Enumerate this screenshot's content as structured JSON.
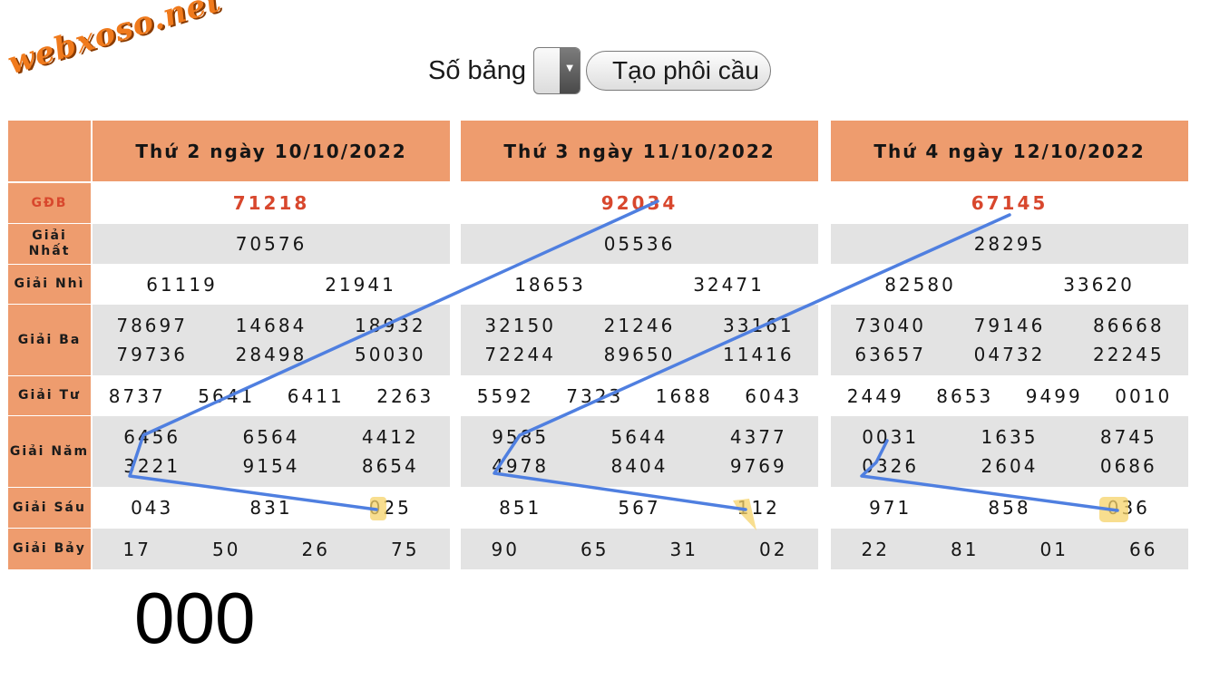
{
  "logo": {
    "text": "webxoso.net"
  },
  "controls": {
    "table_count_label": "Số bảng",
    "table_count_value": "",
    "create_button_label": "Tạo phôi cầu"
  },
  "prize_labels": [
    "GĐB",
    "Giải Nhất",
    "Giải Nhì",
    "Giải Ba",
    "Giải Tư",
    "Giải Năm",
    "Giải Sáu",
    "Giải Bảy"
  ],
  "days": [
    {
      "header": "Thứ 2 ngày 10/10/2022",
      "gdb": "71218",
      "nhat": "70576",
      "nhi": [
        "61119",
        "21941"
      ],
      "ba": [
        "78697",
        "14684",
        "18932",
        "79736",
        "28498",
        "50030"
      ],
      "tu": [
        "8737",
        "5641",
        "6411",
        "2263"
      ],
      "nam": [
        "6456",
        "6564",
        "4412",
        "3221",
        "9154",
        "8654"
      ],
      "sau": [
        "043",
        "831",
        "025"
      ],
      "bay": [
        "17",
        "50",
        "26",
        "75"
      ]
    },
    {
      "header": "Thứ 3 ngày 11/10/2022",
      "gdb": "92034",
      "nhat": "05536",
      "nhi": [
        "18653",
        "32471"
      ],
      "ba": [
        "32150",
        "21246",
        "33161",
        "72244",
        "89650",
        "11416"
      ],
      "tu": [
        "5592",
        "7323",
        "1688",
        "6043"
      ],
      "nam": [
        "9585",
        "5644",
        "4377",
        "4978",
        "8404",
        "9769"
      ],
      "sau": [
        "851",
        "567",
        "112"
      ],
      "bay": [
        "90",
        "65",
        "31",
        "02"
      ]
    },
    {
      "header": "Thứ 4 ngày 12/10/2022",
      "gdb": "67145",
      "nhat": "28295",
      "nhi": [
        "82580",
        "33620"
      ],
      "ba": [
        "73040",
        "79146",
        "86668",
        "63657",
        "04732",
        "22245"
      ],
      "tu": [
        "2449",
        "8653",
        "9499",
        "0010"
      ],
      "nam": [
        "0031",
        "1635",
        "8745",
        "0326",
        "2604",
        "0686"
      ],
      "sau": [
        "971",
        "858",
        "036"
      ],
      "bay": [
        "22",
        "81",
        "01",
        "66"
      ]
    }
  ],
  "annotation": {
    "big_number": "000"
  },
  "colors": {
    "header_bg": "#ee9c6e",
    "gdb_text": "#d8472d",
    "row_grey": "#e3e3e3",
    "line": "#4f7fe0",
    "highlight": "#f6d36a",
    "logo": "#f07a1c"
  }
}
